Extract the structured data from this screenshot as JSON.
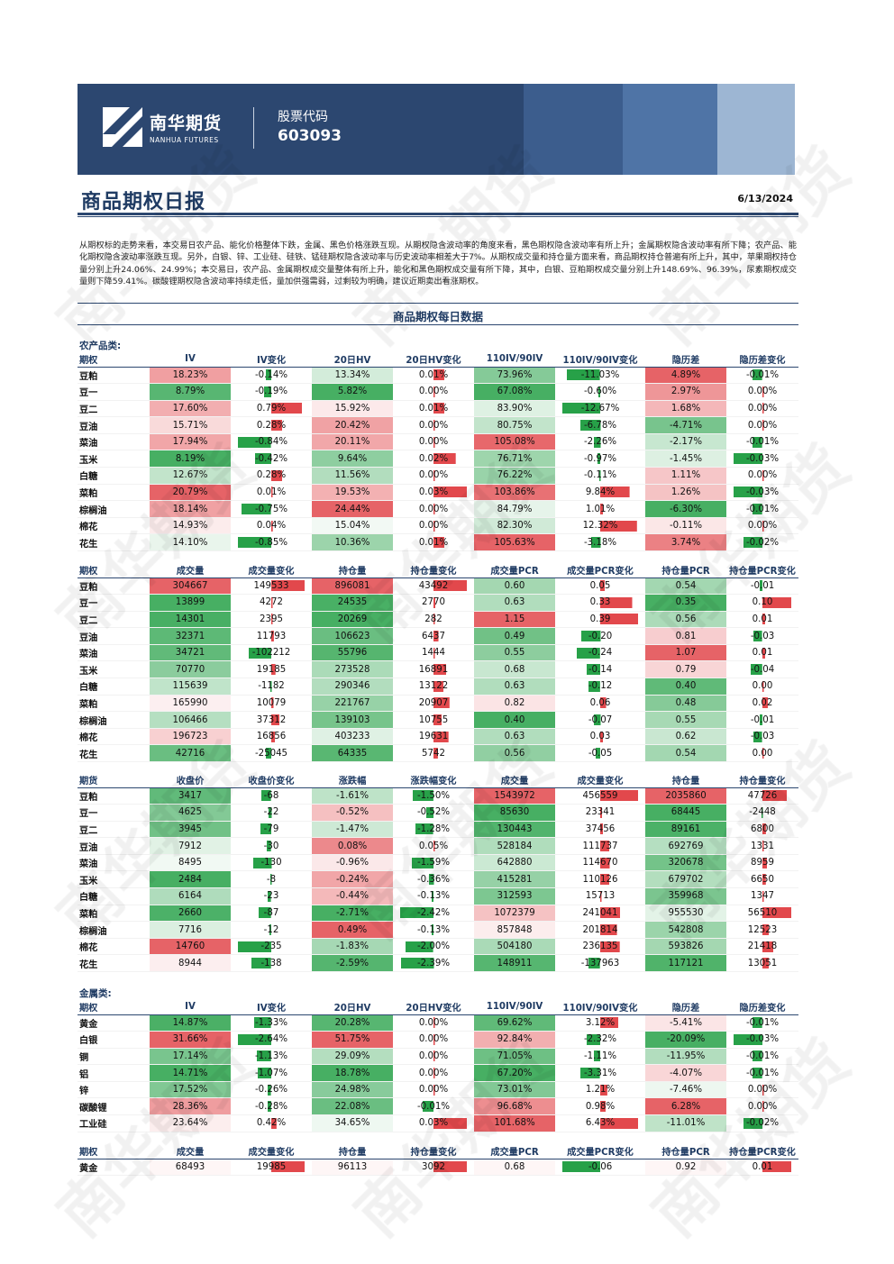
{
  "header": {
    "company_cn": "南华期货",
    "company_en": "NANHUA FUTURES",
    "code_label": "股票代码",
    "code": "603093",
    "colors": {
      "navy": "#2c4770",
      "pos": "#e2484c",
      "neg": "#27a148"
    }
  },
  "report": {
    "title": "商品期权日报",
    "date": "6/13/2024",
    "summary": "从期权标的走势来看，本交易日农产品、能化价格整体下跌，金属、黑色价格涨跌互现。从期权隐含波动率的角度来看，黑色期权隐含波动率有所上升；金属期权隐含波动率有所下降；农产品、能化期权隐含波动率涨跌互现。另外，白银、锌、工业硅、硅铁、锰硅期权隐含波动率与历史波动率相差大于7%。从期权成交量和持仓量方面来看，商品期权持仓普遍有所上升，其中，苹果期权持仓量分别上升24.06%、24.99%；本交易日，农产品、金属期权成交量整体有所上升，能化和黑色期权成交量有所下降，其中，白银、豆粕期权成交量分别上升148.69%、96.39%，尿素期权成交量则下降59.41%。碳酸锂期权隐含波动率持续走低，量加供强需弱，过剩较为明确，建议近期卖出看涨期权。",
    "section_title": "商品期权每日数据"
  },
  "cats": {
    "agri": "农产品类:",
    "metal": "金属类:"
  },
  "heads": {
    "iv": [
      "期权",
      "IV",
      "IV变化",
      "20日HV",
      "20日HV变化",
      "110IV/90IV",
      "110IV/90IV变化",
      "隐历差",
      "隐历差变化"
    ],
    "opt": [
      "期权",
      "成交量",
      "成交量变化",
      "持仓量",
      "持仓量变化",
      "成交量PCR",
      "成交量PCR变化",
      "持仓量PCR",
      "持仓量PCR变化"
    ],
    "fut": [
      "期货",
      "收盘价",
      "收盘价变化",
      "涨跌幅",
      "涨跌幅变化",
      "成交量",
      "成交量变化",
      "持仓量",
      "持仓量变化"
    ]
  },
  "agri_iv": [
    [
      "豆粕",
      "18.23%",
      "-0.14%",
      "13.34%",
      "0.01%",
      "73.96%",
      "-11.03%",
      "4.89%",
      "-0.01%"
    ],
    [
      "豆一",
      "8.79%",
      "-0.19%",
      "5.82%",
      "0.00%",
      "67.08%",
      "-0.60%",
      "2.97%",
      "0.00%"
    ],
    [
      "豆二",
      "17.60%",
      "0.79%",
      "15.92%",
      "0.01%",
      "83.90%",
      "-12.67%",
      "1.68%",
      "0.00%"
    ],
    [
      "豆油",
      "15.71%",
      "0.28%",
      "20.42%",
      "0.00%",
      "80.75%",
      "-6.78%",
      "-4.71%",
      "0.00%"
    ],
    [
      "菜油",
      "17.94%",
      "-0.84%",
      "20.11%",
      "0.00%",
      "105.08%",
      "-2.26%",
      "-2.17%",
      "-0.01%"
    ],
    [
      "玉米",
      "8.19%",
      "-0.42%",
      "9.64%",
      "0.02%",
      "76.71%",
      "-0.97%",
      "-1.45%",
      "-0.03%"
    ],
    [
      "白糖",
      "12.67%",
      "0.28%",
      "11.56%",
      "0.00%",
      "76.22%",
      "-0.11%",
      "1.11%",
      "0.00%"
    ],
    [
      "菜粕",
      "20.79%",
      "0.01%",
      "19.53%",
      "0.03%",
      "103.86%",
      "9.84%",
      "1.26%",
      "-0.03%"
    ],
    [
      "棕榈油",
      "18.14%",
      "-0.75%",
      "24.44%",
      "0.00%",
      "84.79%",
      "1.01%",
      "-6.30%",
      "-0.01%"
    ],
    [
      "棉花",
      "14.93%",
      "0.04%",
      "15.04%",
      "0.00%",
      "82.30%",
      "12.32%",
      "-0.11%",
      "0.00%"
    ],
    [
      "花生",
      "14.10%",
      "-0.85%",
      "10.36%",
      "0.01%",
      "105.63%",
      "-3.18%",
      "3.74%",
      "-0.02%"
    ]
  ],
  "agri_opt": [
    [
      "豆粕",
      "304667",
      "149533",
      "896081",
      "43492",
      "0.60",
      "0.05",
      "0.54",
      "-0.01"
    ],
    [
      "豆一",
      "13899",
      "4272",
      "24535",
      "2770",
      "0.63",
      "0.33",
      "0.35",
      "0.10"
    ],
    [
      "豆二",
      "14301",
      "2395",
      "20269",
      "282",
      "1.15",
      "0.39",
      "0.56",
      "0.01"
    ],
    [
      "豆油",
      "32371",
      "11793",
      "106623",
      "6437",
      "0.49",
      "-0.20",
      "0.81",
      "-0.03"
    ],
    [
      "菜油",
      "34721",
      "-102212",
      "55796",
      "1444",
      "0.55",
      "-0.24",
      "1.07",
      "0.01"
    ],
    [
      "玉米",
      "70770",
      "19185",
      "273528",
      "16891",
      "0.68",
      "-0.14",
      "0.79",
      "-0.04"
    ],
    [
      "白糖",
      "115639",
      "-1182",
      "290346",
      "13122",
      "0.63",
      "-0.12",
      "0.40",
      "0.00"
    ],
    [
      "菜粕",
      "165990",
      "10079",
      "221767",
      "20907",
      "0.82",
      "0.06",
      "0.48",
      "0.02"
    ],
    [
      "棕榈油",
      "106466",
      "37312",
      "139103",
      "10755",
      "0.40",
      "-0.07",
      "0.55",
      "-0.01"
    ],
    [
      "棉花",
      "196723",
      "16856",
      "403233",
      "19631",
      "0.63",
      "0.03",
      "0.62",
      "-0.03"
    ],
    [
      "花生",
      "42716",
      "-25045",
      "64335",
      "5742",
      "0.56",
      "-0.05",
      "0.54",
      "0.00"
    ]
  ],
  "agri_fut": [
    [
      "豆粕",
      "3417",
      "-68",
      "-1.61%",
      "-1.50%",
      "1543972",
      "456559",
      "2035860",
      "47726"
    ],
    [
      "豆一",
      "4625",
      "-22",
      "-0.52%",
      "-0.52%",
      "85630",
      "23341",
      "68445",
      "-2448"
    ],
    [
      "豆二",
      "3945",
      "-79",
      "-1.47%",
      "-1.28%",
      "130443",
      "37456",
      "89161",
      "6800"
    ],
    [
      "豆油",
      "7912",
      "-30",
      "0.08%",
      "0.05%",
      "528184",
      "111737",
      "692769",
      "1331"
    ],
    [
      "菜油",
      "8495",
      "-130",
      "-0.96%",
      "-1.59%",
      "642880",
      "114670",
      "320678",
      "8959"
    ],
    [
      "玉米",
      "2484",
      "-8",
      "-0.24%",
      "-0.36%",
      "415281",
      "110126",
      "679702",
      "6650"
    ],
    [
      "白糖",
      "6164",
      "-23",
      "-0.44%",
      "-0.13%",
      "312593",
      "15713",
      "359968",
      "1347"
    ],
    [
      "菜粕",
      "2660",
      "-87",
      "-2.71%",
      "-2.42%",
      "1072379",
      "241041",
      "955530",
      "56510"
    ],
    [
      "棕榈油",
      "7716",
      "-12",
      "0.49%",
      "-0.13%",
      "857848",
      "201814",
      "542808",
      "12523"
    ],
    [
      "棉花",
      "14760",
      "-235",
      "-1.83%",
      "-2.00%",
      "504180",
      "236135",
      "593826",
      "21418"
    ],
    [
      "花生",
      "8944",
      "-138",
      "-2.59%",
      "-2.39%",
      "148911",
      "-137963",
      "117121",
      "13051"
    ]
  ],
  "metal_iv": [
    [
      "黄金",
      "14.87%",
      "-1.33%",
      "20.28%",
      "0.00%",
      "69.62%",
      "3.12%",
      "-5.41%",
      "-0.01%"
    ],
    [
      "白银",
      "31.66%",
      "-2.64%",
      "51.75%",
      "0.00%",
      "92.84%",
      "-2.32%",
      "-20.09%",
      "-0.03%"
    ],
    [
      "铜",
      "17.14%",
      "-1.13%",
      "29.09%",
      "0.00%",
      "71.05%",
      "-1.11%",
      "-11.95%",
      "-0.01%"
    ],
    [
      "铝",
      "14.71%",
      "-1.07%",
      "18.78%",
      "0.00%",
      "67.20%",
      "-3.31%",
      "-4.07%",
      "-0.01%"
    ],
    [
      "锌",
      "17.52%",
      "-0.26%",
      "24.98%",
      "0.00%",
      "73.01%",
      "1.21%",
      "-7.46%",
      "0.00%"
    ],
    [
      "碳酸锂",
      "28.36%",
      "-0.28%",
      "22.08%",
      "-0.01%",
      "96.68%",
      "0.98%",
      "6.28%",
      "0.00%"
    ],
    [
      "工业硅",
      "23.64%",
      "0.42%",
      "34.65%",
      "0.03%",
      "101.68%",
      "6.43%",
      "-11.01%",
      "-0.02%"
    ]
  ],
  "metal_opt": [
    [
      "黄金",
      "68493",
      "19985",
      "96113",
      "3092",
      "0.68",
      "-0.06",
      "0.92",
      "0.01"
    ]
  ]
}
